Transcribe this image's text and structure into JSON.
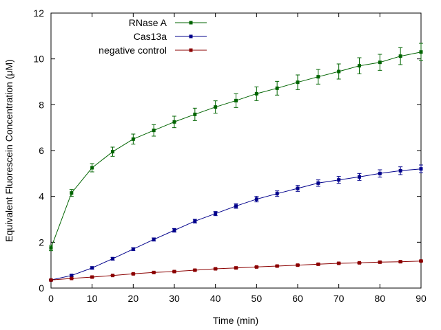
{
  "chart_data": {
    "type": "line",
    "title": "",
    "xlabel": "Time (min)",
    "ylabel": "Equivalent Fluorescein Concentration (μM)",
    "xlim": [
      0,
      90
    ],
    "ylim": [
      0,
      12
    ],
    "xticks": [
      0,
      10,
      20,
      30,
      40,
      50,
      60,
      70,
      80,
      90
    ],
    "yticks": [
      0,
      2,
      4,
      6,
      8,
      10,
      12
    ],
    "grid": false,
    "legend_position": "top-center",
    "x": [
      0,
      5,
      10,
      15,
      20,
      25,
      30,
      35,
      40,
      45,
      50,
      55,
      60,
      65,
      70,
      75,
      80,
      85,
      90
    ],
    "series": [
      {
        "name": "RNase A",
        "color": "#006400",
        "values": [
          1.75,
          4.15,
          5.25,
          5.95,
          6.5,
          6.88,
          7.25,
          7.58,
          7.9,
          8.18,
          8.48,
          8.72,
          8.98,
          9.22,
          9.45,
          9.7,
          9.85,
          10.12,
          10.3
        ],
        "errors": [
          0.12,
          0.15,
          0.18,
          0.2,
          0.22,
          0.25,
          0.25,
          0.27,
          0.27,
          0.3,
          0.3,
          0.3,
          0.32,
          0.32,
          0.33,
          0.35,
          0.35,
          0.37,
          0.38
        ]
      },
      {
        "name": "Cas13a",
        "color": "#00008b",
        "values": [
          0.35,
          0.55,
          0.88,
          1.28,
          1.7,
          2.12,
          2.52,
          2.92,
          3.25,
          3.58,
          3.88,
          4.12,
          4.35,
          4.58,
          4.72,
          4.85,
          5.0,
          5.12,
          5.2
        ],
        "errors": [
          0.03,
          0.04,
          0.05,
          0.06,
          0.06,
          0.07,
          0.08,
          0.08,
          0.09,
          0.1,
          0.12,
          0.12,
          0.13,
          0.14,
          0.15,
          0.15,
          0.16,
          0.17,
          0.17
        ]
      },
      {
        "name": "negative control",
        "color": "#8b0000",
        "values": [
          0.35,
          0.42,
          0.48,
          0.55,
          0.62,
          0.68,
          0.72,
          0.78,
          0.84,
          0.88,
          0.92,
          0.96,
          1.0,
          1.04,
          1.08,
          1.1,
          1.13,
          1.15,
          1.18
        ],
        "errors": [
          0.02,
          0.02,
          0.02,
          0.02,
          0.02,
          0.02,
          0.03,
          0.03,
          0.03,
          0.03,
          0.03,
          0.03,
          0.03,
          0.03,
          0.03,
          0.03,
          0.03,
          0.03,
          0.03
        ]
      }
    ]
  }
}
